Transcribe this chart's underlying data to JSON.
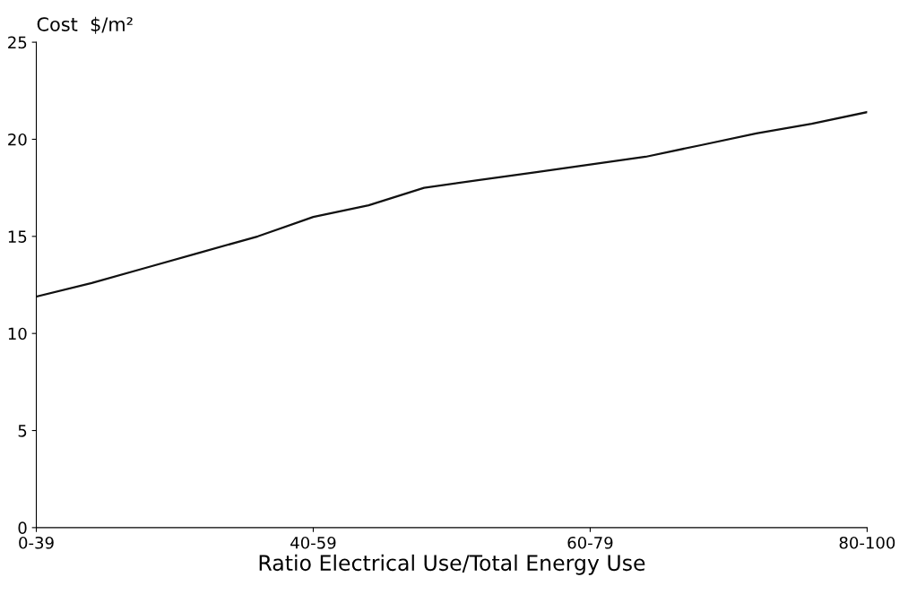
{
  "chart_data": {
    "type": "line",
    "ylabel": "Cost  $/m²",
    "xlabel": "Ratio Electrical Use/Total Energy Use",
    "categories": [
      "0-39",
      null,
      null,
      null,
      null,
      "40-59",
      null,
      null,
      null,
      null,
      "60-79",
      null,
      null,
      null,
      null,
      "80-100"
    ],
    "series": [
      {
        "color": "#111111",
        "values": [
          11.9,
          12.6,
          13.4,
          14.2,
          15.0,
          16.0,
          16.6,
          17.5,
          17.9,
          18.3,
          18.7,
          19.1,
          19.7,
          20.3,
          20.8,
          21.4
        ]
      }
    ],
    "ylim": [
      0,
      25
    ],
    "yticks": [
      0,
      5,
      10,
      15,
      20,
      25
    ],
    "grid": false,
    "legend": false,
    "marker": "none",
    "line_style": "solid"
  }
}
